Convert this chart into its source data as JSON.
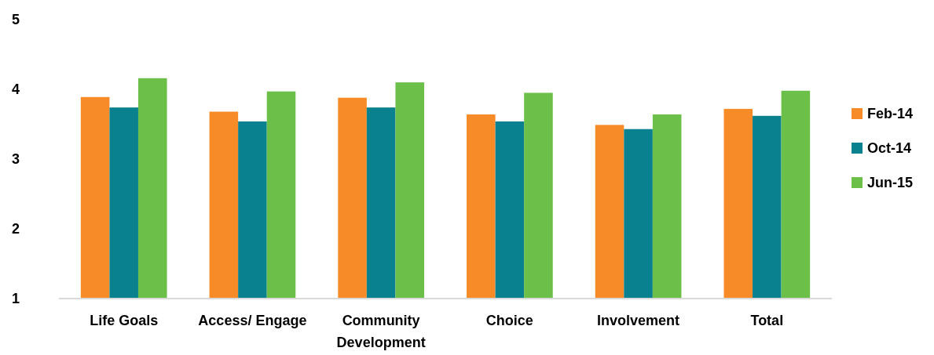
{
  "chart_data": {
    "type": "bar",
    "categories": [
      "Life Goals",
      "Access/ Engage",
      "Community Development",
      "Choice",
      "Involvement",
      "Total"
    ],
    "series": [
      {
        "name": "Feb-14",
        "color": "#f68b28",
        "values": [
          3.89,
          3.68,
          3.88,
          3.64,
          3.49,
          3.72
        ]
      },
      {
        "name": "Oct-14",
        "color": "#0a818f",
        "values": [
          3.74,
          3.54,
          3.74,
          3.54,
          3.43,
          3.62
        ]
      },
      {
        "name": "Jun-15",
        "color": "#6cc04a",
        "values": [
          4.16,
          3.97,
          4.1,
          3.95,
          3.64,
          3.98
        ]
      }
    ],
    "ylim": [
      1,
      5
    ],
    "yticks": [
      1,
      2,
      3,
      4,
      5
    ],
    "grid": false,
    "legend": "right"
  }
}
